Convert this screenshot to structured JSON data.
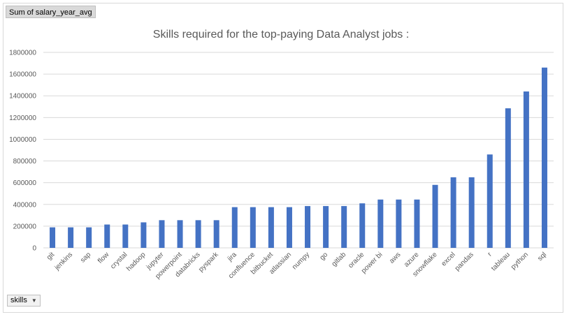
{
  "pivot": {
    "value_field": "Sum of salary_year_avg",
    "axis_field": "skills"
  },
  "colors": {
    "bar": "#4472C4",
    "grid": "#d9d9d9",
    "text": "#595959"
  },
  "icons": {
    "axis_dropdown": "triangle-down-icon"
  },
  "chart_data": {
    "type": "bar",
    "title": "Skills required for the top-paying Data Analyst jobs :",
    "xlabel": "",
    "ylabel": "",
    "ylim": [
      0,
      1800000
    ],
    "yticks": [
      "0",
      "200000",
      "400000",
      "600000",
      "800000",
      "1000000",
      "1200000",
      "1400000",
      "1600000",
      "1800000"
    ],
    "grid": true,
    "legend": "none",
    "categories": [
      "git",
      "jenkins",
      "sap",
      "flow",
      "crystal",
      "hadoop",
      "jupyter",
      "powerpoint",
      "databricks",
      "pyspark",
      "jira",
      "confluence",
      "bitbucket",
      "atlassian",
      "numpy",
      "go",
      "gitlab",
      "oracle",
      "power bi",
      "aws",
      "azure",
      "snowflake",
      "excel",
      "pandas",
      "r",
      "tableau",
      "python",
      "sql"
    ],
    "values": [
      189000,
      189000,
      189000,
      215000,
      215000,
      235000,
      255000,
      255000,
      255000,
      255000,
      375000,
      375000,
      375000,
      375000,
      385000,
      385000,
      385000,
      410000,
      445000,
      445000,
      445000,
      580000,
      650000,
      650000,
      860000,
      1285000,
      1440000,
      1660000
    ]
  }
}
